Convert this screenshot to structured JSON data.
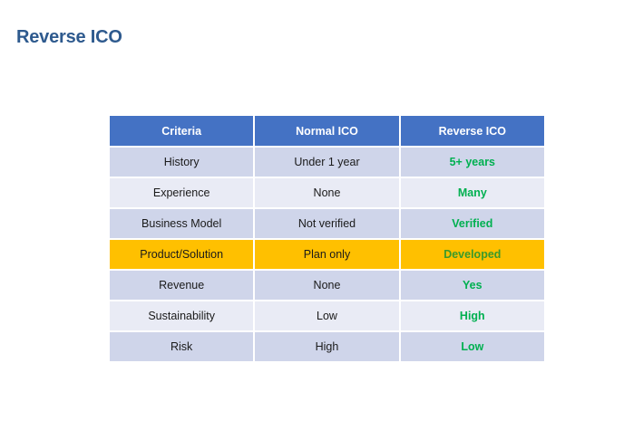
{
  "slide": {
    "title": "Reverse ICO"
  },
  "table": {
    "headers": [
      "Criteria",
      "Normal ICO",
      "Reverse ICO"
    ],
    "rows": [
      {
        "criteria": "History",
        "normal": "Under 1 year",
        "reverse": "5+ years"
      },
      {
        "criteria": "Experience",
        "normal": "None",
        "reverse": "Many"
      },
      {
        "criteria": "Business Model",
        "normal": "Not verified",
        "reverse": "Verified"
      },
      {
        "criteria": "Product/Solution",
        "normal": "Plan only",
        "reverse": "Developed"
      },
      {
        "criteria": "Revenue",
        "normal": "None",
        "reverse": "Yes"
      },
      {
        "criteria": "Sustainability",
        "normal": "Low",
        "reverse": "High"
      },
      {
        "criteria": "Risk",
        "normal": "High",
        "reverse": "Low"
      }
    ]
  },
  "colors": {
    "title": "#2e5a8e",
    "header": "#4472c4",
    "row_dark": "#cfd5ea",
    "row_light": "#e9ebf5",
    "highlight": "#ffc000",
    "positive_text": "#00b050"
  }
}
